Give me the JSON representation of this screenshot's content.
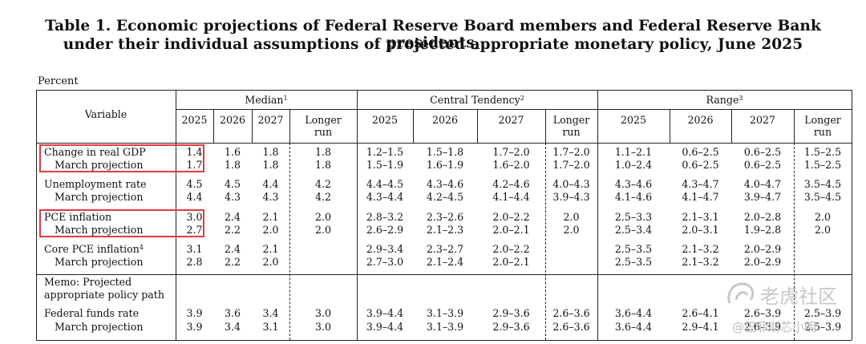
{
  "title_line1": "Table 1. Economic projections of Federal Reserve Board members and Federal Reserve Bank presidents,",
  "title_line2": "under their individual assumptions of projected appropriate monetary policy, June 2025",
  "unit_label": "Percent",
  "variable_header": "Variable",
  "groups": [
    {
      "label": "Median",
      "sup": "1"
    },
    {
      "label": "Central Tendency",
      "sup": "2"
    },
    {
      "label": "Range",
      "sup": "3"
    }
  ],
  "years": [
    "2025",
    "2026",
    "2027"
  ],
  "longer_run": [
    "Longer",
    "run"
  ],
  "rows": [
    {
      "label": "Change in real GDP",
      "values": [
        "1.4",
        "1.6",
        "1.8",
        "1.8",
        "1.2–1.5",
        "1.5–1.8",
        "1.7–2.0",
        "1.7–2.0",
        "1.1–2.1",
        "0.6–2.5",
        "0.6–2.5",
        "1.5–2.5"
      ]
    },
    {
      "label": "March projection",
      "values": [
        "1.7",
        "1.8",
        "1.8",
        "1.8",
        "1.5–1.9",
        "1.6–1.9",
        "1.6–2.0",
        "1.7–2.0",
        "1.0–2.4",
        "0.6–2.5",
        "0.6–2.5",
        "1.5–2.5"
      ]
    },
    {
      "label": "Unemployment rate",
      "values": [
        "4.5",
        "4.5",
        "4.4",
        "4.2",
        "4.4–4.5",
        "4.3–4.6",
        "4.2–4.6",
        "4.0–4.3",
        "4.3–4.6",
        "4.3–4.7",
        "4.0–4.7",
        "3.5–4.5"
      ]
    },
    {
      "label": "March projection",
      "values": [
        "4.4",
        "4.3",
        "4.3",
        "4.2",
        "4.3–4.4",
        "4.2–4.5",
        "4.1–4.4",
        "3.9–4.3",
        "4.1–4.6",
        "4.1–4.7",
        "3.9–4.7",
        "3.5–4.5"
      ]
    },
    {
      "label": "PCE inflation",
      "values": [
        "3.0",
        "2.4",
        "2.1",
        "2.0",
        "2.8–3.2",
        "2.3–2.6",
        "2.0–2.2",
        "2.0",
        "2.5–3.3",
        "2.1–3.1",
        "2.0–2.8",
        "2.0"
      ]
    },
    {
      "label": "March projection",
      "values": [
        "2.7",
        "2.2",
        "2.0",
        "2.0",
        "2.6–2.9",
        "2.1–2.3",
        "2.0–2.1",
        "2.0",
        "2.5–3.4",
        "2.0–3.1",
        "1.9–2.8",
        "2.0"
      ]
    },
    {
      "label": "Core PCE inflation",
      "sup": "4",
      "values": [
        "3.1",
        "2.4",
        "2.1",
        "",
        "2.9–3.4",
        "2.3–2.7",
        "2.0–2.2",
        "",
        "2.5–3.5",
        "2.1–3.2",
        "2.0–2.9",
        ""
      ]
    },
    {
      "label": "March projection",
      "values": [
        "2.8",
        "2.2",
        "2.0",
        "",
        "2.7–3.0",
        "2.1–2.4",
        "2.0–2.1",
        "",
        "2.5–3.5",
        "2.1–3.2",
        "2.0–2.9",
        ""
      ]
    },
    {
      "label": "Federal funds rate",
      "values": [
        "3.9",
        "3.6",
        "3.4",
        "3.0",
        "3.9–4.4",
        "3.1–3.9",
        "2.9–3.6",
        "2.6–3.6",
        "3.6–4.4",
        "2.6–4.1",
        "2.6–3.9",
        "2.5–3.9"
      ]
    },
    {
      "label": "March projection",
      "values": [
        "3.9",
        "3.4",
        "3.1",
        "3.0",
        "3.9–4.4",
        "3.1–3.9",
        "2.9–3.6",
        "2.6–3.6",
        "3.6–4.4",
        "2.9–4.1",
        "2.6–3.9",
        "2.5–3.9"
      ]
    }
  ],
  "memo_line1": "Memo: Projected",
  "memo_line2": "appropriate policy path",
  "highlight_color": "#e03c3c",
  "watermark_1": "老虎社区",
  "watermark_2": "@巴菲斯芯小明",
  "watermark_icon": "tiger-community-logo-icon"
}
